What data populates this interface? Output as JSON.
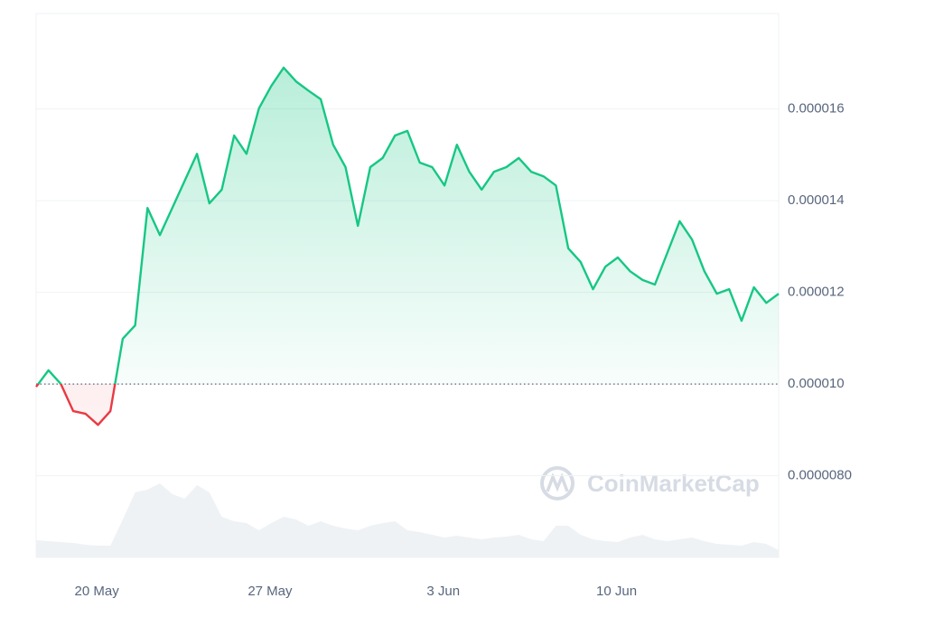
{
  "chart_data": {
    "type": "line",
    "watermark": "CoinMarketCap",
    "x": [
      0,
      0.5,
      1,
      1.5,
      2,
      2.5,
      3,
      3.5,
      4,
      4.5,
      5,
      5.5,
      6,
      6.5,
      7,
      7.5,
      8,
      8.5,
      9,
      9.5,
      10,
      10.5,
      11,
      11.5,
      12,
      12.5,
      13,
      13.5,
      14,
      14.5,
      15,
      15.5,
      16,
      16.5,
      17,
      17.5,
      18,
      18.5,
      19,
      19.5,
      20,
      20.5,
      21,
      21.5,
      22,
      22.5,
      23,
      23.5,
      24,
      24.5,
      25,
      25.5,
      26,
      26.5,
      27,
      27.5,
      28,
      28.5,
      29,
      29.5,
      30
    ],
    "series": [
      {
        "name": "Price",
        "color": "#16c784",
        "below_color": "#ea3943",
        "values": [
          9.94e-06,
          1.03e-05,
          1e-05,
          9.41e-06,
          9.35e-06,
          9.11e-06,
          9.41e-06,
          1.099e-05,
          1.128e-05,
          1.384e-05,
          1.325e-05,
          1.384e-05,
          1.443e-05,
          1.502e-05,
          1.394e-05,
          1.424e-05,
          1.542e-05,
          1.502e-05,
          1.601e-05,
          1.65e-05,
          1.69e-05,
          1.66e-05,
          1.64e-05,
          1.621e-05,
          1.522e-05,
          1.473e-05,
          1.345e-05,
          1.473e-05,
          1.493e-05,
          1.542e-05,
          1.552e-05,
          1.483e-05,
          1.473e-05,
          1.433e-05,
          1.522e-05,
          1.463e-05,
          1.424e-05,
          1.463e-05,
          1.473e-05,
          1.493e-05,
          1.463e-05,
          1.453e-05,
          1.433e-05,
          1.296e-05,
          1.266e-05,
          1.207e-05,
          1.256e-05,
          1.276e-05,
          1.246e-05,
          1.227e-05,
          1.217e-05,
          1.286e-05,
          1.355e-05,
          1.315e-05,
          1.246e-05,
          1.197e-05,
          1.207e-05,
          1.138e-05,
          1.211e-05,
          1.177e-05,
          1.197e-05
        ]
      },
      {
        "name": "Volume",
        "color": "#eff2f5",
        "axis": "y2",
        "values": [
          19,
          18,
          17,
          16,
          14,
          13,
          13,
          42,
          72,
          75,
          82,
          70,
          65,
          80,
          72,
          45,
          40,
          38,
          30,
          38,
          45,
          42,
          35,
          40,
          35,
          32,
          30,
          35,
          38,
          40,
          30,
          28,
          25,
          22,
          24,
          22,
          20,
          22,
          23,
          25,
          20,
          18,
          35,
          35,
          25,
          20,
          18,
          17,
          22,
          25,
          20,
          18,
          20,
          22,
          18,
          15,
          14,
          13,
          17,
          15,
          8
        ]
      }
    ],
    "baseline": 1e-05,
    "xlim": [
      0,
      30
    ],
    "xticks": [
      {
        "value": 2.45,
        "label": "20 May"
      },
      {
        "value": 9.45,
        "label": "27 May"
      },
      {
        "value": 16.45,
        "label": "3 Jun"
      },
      {
        "value": 23.45,
        "label": "10 Jun"
      }
    ],
    "ylim": [
      6.22e-06,
      1.808e-05
    ],
    "yticks": [
      {
        "value": 8e-06,
        "label": "0.0000080"
      },
      {
        "value": 1e-05,
        "label": "0.000010"
      },
      1.2e-05,
      1.4e-05,
      1.6e-05
    ],
    "y2lim": [
      0,
      100
    ],
    "grid": true
  }
}
